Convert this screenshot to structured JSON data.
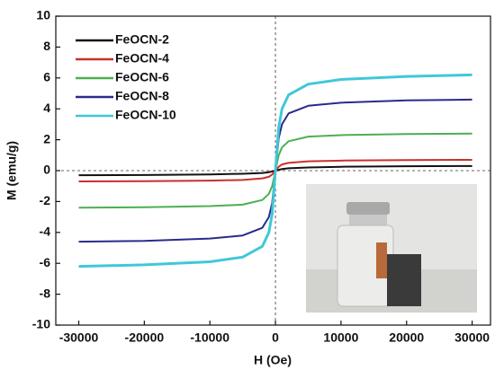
{
  "chart_data": {
    "type": "line",
    "x_label": "H (Oe)",
    "y_label": "M (emu/g)",
    "x": [
      -30000,
      -20000,
      -10000,
      -5000,
      -2000,
      -1000,
      -500,
      0,
      500,
      1000,
      2000,
      5000,
      10000,
      20000,
      30000
    ],
    "series": [
      {
        "name": "FeOCN-2",
        "color": "#111111",
        "values": [
          -0.3,
          -0.28,
          -0.25,
          -0.2,
          -0.15,
          -0.1,
          -0.05,
          0,
          0.05,
          0.1,
          0.15,
          0.2,
          0.25,
          0.28,
          0.3
        ]
      },
      {
        "name": "FeOCN-4",
        "color": "#c8302c",
        "values": [
          -0.7,
          -0.68,
          -0.65,
          -0.6,
          -0.5,
          -0.4,
          -0.25,
          0,
          0.25,
          0.4,
          0.5,
          0.6,
          0.65,
          0.68,
          0.7
        ]
      },
      {
        "name": "FeOCN-6",
        "color": "#4caf50",
        "values": [
          -2.4,
          -2.37,
          -2.3,
          -2.2,
          -1.9,
          -1.5,
          -1.0,
          0,
          1.0,
          1.5,
          1.9,
          2.2,
          2.3,
          2.37,
          2.4
        ]
      },
      {
        "name": "FeOCN-8",
        "color": "#2a2a8c",
        "values": [
          -4.6,
          -4.55,
          -4.4,
          -4.2,
          -3.7,
          -3.0,
          -2.1,
          0,
          2.1,
          3.0,
          3.7,
          4.2,
          4.4,
          4.55,
          4.6
        ]
      },
      {
        "name": "FeOCN-10",
        "color": "#40c8d8",
        "values": [
          -6.2,
          -6.1,
          -5.9,
          -5.6,
          -4.9,
          -4.0,
          -2.8,
          0,
          2.8,
          4.0,
          4.9,
          5.6,
          5.9,
          6.1,
          6.2
        ]
      }
    ],
    "xlim": [
      -33500,
      32800
    ],
    "ylim": [
      -10,
      10
    ],
    "xticks": [
      -30000,
      -20000,
      -10000,
      0,
      10000,
      20000,
      30000
    ],
    "yticks": [
      -10,
      -8,
      -6,
      -4,
      -2,
      0,
      2,
      4,
      6,
      8,
      10
    ],
    "zero_lines": true,
    "legend": "upper-left"
  }
}
